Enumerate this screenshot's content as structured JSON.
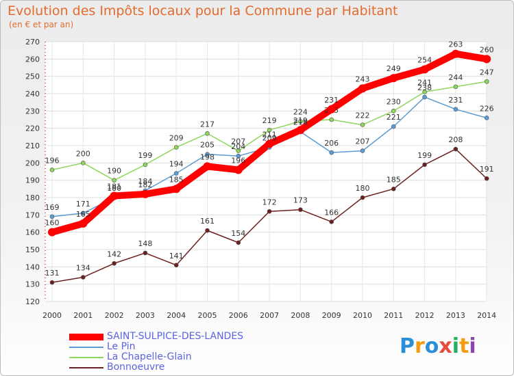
{
  "chart_data": {
    "type": "line",
    "title": "Evolution des Impôts locaux pour la Commune par Habitant",
    "subtitle": "(en € et par an)",
    "x": [
      "2000",
      "2001",
      "2002",
      "2003",
      "2004",
      "2005",
      "2006",
      "2007",
      "2008",
      "2009",
      "2010",
      "2011",
      "2012",
      "2013",
      "2014"
    ],
    "ylim": [
      120,
      270
    ],
    "yticks": [
      120,
      130,
      140,
      150,
      160,
      170,
      180,
      190,
      200,
      210,
      220,
      230,
      240,
      250,
      260,
      270
    ],
    "series": [
      {
        "name": "SAINT-SULPICE-DES-LANDES",
        "color": "#ff0000",
        "width": 10,
        "values": [
          160,
          165,
          181,
          182,
          185,
          198,
          196,
          211,
          219,
          231,
          243,
          249,
          254,
          263,
          260
        ]
      },
      {
        "name": "Le Pin",
        "color": "#5b9bd5",
        "width": 1.5,
        "values": [
          169,
          171,
          180,
          184,
          194,
          205,
          204,
          209,
          218,
          206,
          207,
          221,
          238,
          231,
          226
        ]
      },
      {
        "name": "La Chapelle-Glain",
        "color": "#8cd65c",
        "width": 1.5,
        "values": [
          196,
          200,
          190,
          199,
          209,
          217,
          207,
          219,
          224,
          225,
          222,
          230,
          241,
          244,
          247
        ]
      },
      {
        "name": "Bonnoeuvre",
        "color": "#6b1f1f",
        "width": 1.5,
        "values": [
          131,
          134,
          142,
          148,
          141,
          161,
          154,
          172,
          173,
          166,
          180,
          185,
          199,
          208,
          191
        ]
      }
    ]
  },
  "logo": {
    "text": "Proxiti",
    "letters": [
      {
        "ch": "P",
        "color": "#2a8fd6"
      },
      {
        "ch": "r",
        "color": "#f39c12"
      },
      {
        "ch": "o",
        "color": "#2a8fd6"
      },
      {
        "ch": "x",
        "color": "#e74c3c"
      },
      {
        "ch": "i",
        "color": "#27ae60"
      },
      {
        "ch": "t",
        "color": "#f39c12"
      },
      {
        "ch": "i",
        "color": "#8e44ad"
      }
    ]
  }
}
